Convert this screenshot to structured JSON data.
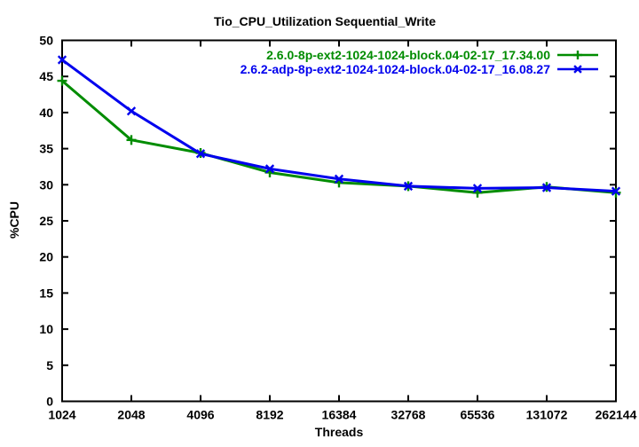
{
  "chart_data": {
    "type": "line",
    "title": "Tio_CPU_Utilization Sequential_Write",
    "xlabel": "Threads",
    "ylabel": "%CPU",
    "x": [
      1024,
      2048,
      4096,
      8192,
      16384,
      32768,
      65536,
      131072,
      262144
    ],
    "x_scale": "log2",
    "ylim": [
      0,
      50
    ],
    "yticks": [
      0,
      5,
      10,
      15,
      20,
      25,
      30,
      35,
      40,
      45,
      50
    ],
    "grid": false,
    "legend_position": "top-right-inside",
    "border_color": "#000000",
    "background_color": "#ffffff",
    "series": [
      {
        "name": "2.6.0-8p-ext2-1024-1024-block.04-02-17_17.34.00",
        "color": "#008C00",
        "marker": "plus",
        "values": [
          44.4,
          36.2,
          34.4,
          31.7,
          30.3,
          29.8,
          28.9,
          29.7,
          28.9
        ]
      },
      {
        "name": "2.6.2-adp-8p-ext2-1024-1024-block.04-02-17_16.08.27",
        "color": "#0000EE",
        "marker": "cross",
        "values": [
          47.3,
          40.2,
          34.3,
          32.2,
          30.8,
          29.8,
          29.5,
          29.6,
          29.1
        ]
      }
    ]
  }
}
